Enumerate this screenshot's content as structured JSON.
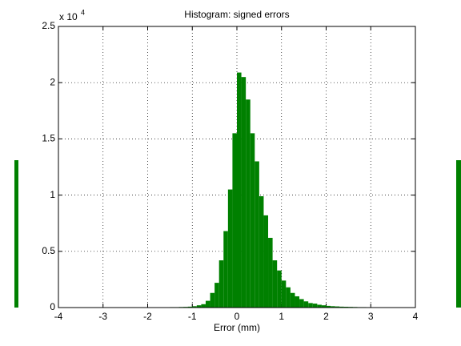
{
  "chart_data": {
    "type": "histogram",
    "title": "Histogram: signed errors",
    "x_label": "Error (mm)",
    "y_scale_base": "x 10",
    "y_scale_exponent": "4",
    "bins": [
      -2.2,
      -2.1,
      -2.0,
      -1.9,
      -1.8,
      -1.7,
      -1.6,
      -1.5,
      -1.4,
      -1.3,
      -1.2,
      -1.1,
      -1.0,
      -0.9,
      -0.8,
      -0.7,
      -0.6,
      -0.5,
      -0.4,
      -0.3,
      -0.2,
      -0.1,
      0.0,
      0.1,
      0.2,
      0.3,
      0.4,
      0.5,
      0.6,
      0.7,
      0.8,
      0.9,
      1.0,
      1.1,
      1.2,
      1.3,
      1.4,
      1.5,
      1.6,
      1.7,
      1.8,
      1.9,
      2.0,
      2.1,
      2.2,
      2.3,
      2.4,
      2.5,
      2.6,
      2.7,
      2.8,
      2.9,
      3.0,
      3.1,
      3.2,
      3.3,
      3.4
    ],
    "counts": [
      0.002,
      0.002,
      0.002,
      0.002,
      0.003,
      0.003,
      0.003,
      0.004,
      0.004,
      0.005,
      0.006,
      0.008,
      0.012,
      0.02,
      0.03,
      0.06,
      0.13,
      0.22,
      0.42,
      0.68,
      1.05,
      1.55,
      2.09,
      2.05,
      1.85,
      1.55,
      1.3,
      0.99,
      0.82,
      0.62,
      0.42,
      0.33,
      0.24,
      0.18,
      0.13,
      0.1,
      0.075,
      0.055,
      0.04,
      0.035,
      0.025,
      0.02,
      0.015,
      0.012,
      0.01,
      0.008,
      0.007,
      0.006,
      0.005,
      0.004,
      0.004,
      0.003,
      0.003,
      0.003,
      0.002,
      0.002
    ],
    "color": "#008000",
    "xlim": [
      -4,
      4
    ],
    "xticks": [
      -4,
      -3,
      -2,
      -1,
      0,
      1,
      2,
      3,
      4
    ],
    "ylim": [
      0,
      2.5
    ],
    "yticks": [
      0,
      0.5,
      1,
      1.5,
      2,
      2.5
    ],
    "grid": true
  }
}
